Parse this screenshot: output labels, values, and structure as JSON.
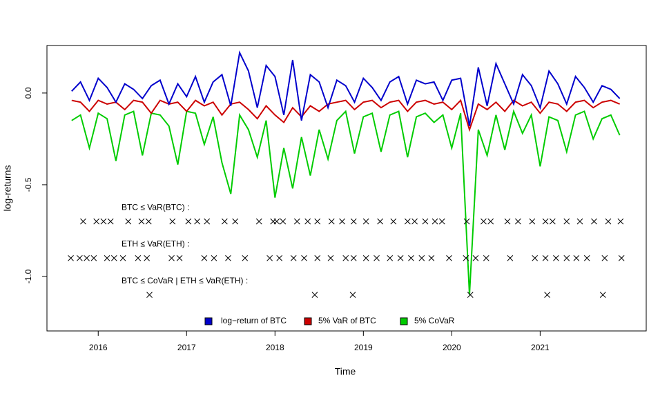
{
  "chart_data": {
    "type": "line",
    "x_label": "Time",
    "y_label": "log-returns",
    "x": [
      2015.7,
      2015.8,
      2015.9,
      2016.0,
      2016.1,
      2016.2,
      2016.3,
      2016.4,
      2016.5,
      2016.6,
      2016.7,
      2016.8,
      2016.9,
      2017.0,
      2017.1,
      2017.2,
      2017.3,
      2017.4,
      2017.5,
      2017.6,
      2017.7,
      2017.8,
      2017.9,
      2018.0,
      2018.1,
      2018.2,
      2018.3,
      2018.4,
      2018.5,
      2018.6,
      2018.7,
      2018.8,
      2018.9,
      2019.0,
      2019.1,
      2019.2,
      2019.3,
      2019.4,
      2019.5,
      2019.6,
      2019.7,
      2019.8,
      2019.9,
      2020.0,
      2020.1,
      2020.2,
      2020.3,
      2020.4,
      2020.5,
      2020.6,
      2020.7,
      2020.8,
      2020.9,
      2021.0,
      2021.1,
      2021.2,
      2021.3,
      2021.4,
      2021.5,
      2021.6,
      2021.7,
      2021.8,
      2021.9
    ],
    "series": [
      {
        "name": "log−return of BTC",
        "color": "#0000cc",
        "values": [
          0.01,
          0.06,
          -0.04,
          0.08,
          0.03,
          -0.05,
          0.05,
          0.02,
          -0.03,
          0.04,
          0.07,
          -0.06,
          0.05,
          -0.02,
          0.09,
          -0.05,
          0.06,
          0.1,
          -0.07,
          0.22,
          0.12,
          -0.08,
          0.15,
          0.09,
          -0.12,
          0.18,
          -0.15,
          0.1,
          0.06,
          -0.08,
          0.07,
          0.04,
          -0.05,
          0.08,
          0.03,
          -0.04,
          0.06,
          0.09,
          -0.06,
          0.07,
          0.05,
          0.06,
          -0.04,
          0.07,
          0.08,
          -0.18,
          0.14,
          -0.07,
          0.16,
          0.05,
          -0.06,
          0.1,
          0.04,
          -0.08,
          0.12,
          0.05,
          -0.06,
          0.09,
          0.03,
          -0.05,
          0.04,
          0.02,
          -0.03
        ]
      },
      {
        "name": "5% VaR of BTC",
        "color": "#cc0000",
        "values": [
          -0.04,
          -0.05,
          -0.1,
          -0.04,
          -0.06,
          -0.05,
          -0.09,
          -0.04,
          -0.05,
          -0.11,
          -0.04,
          -0.06,
          -0.05,
          -0.1,
          -0.04,
          -0.07,
          -0.05,
          -0.12,
          -0.06,
          -0.05,
          -0.09,
          -0.14,
          -0.07,
          -0.12,
          -0.16,
          -0.08,
          -0.13,
          -0.07,
          -0.1,
          -0.06,
          -0.05,
          -0.04,
          -0.09,
          -0.05,
          -0.04,
          -0.08,
          -0.05,
          -0.04,
          -0.1,
          -0.05,
          -0.04,
          -0.06,
          -0.05,
          -0.09,
          -0.04,
          -0.2,
          -0.06,
          -0.09,
          -0.05,
          -0.1,
          -0.04,
          -0.07,
          -0.05,
          -0.11,
          -0.05,
          -0.06,
          -0.1,
          -0.05,
          -0.04,
          -0.08,
          -0.05,
          -0.04,
          -0.06
        ]
      },
      {
        "name": "5% CoVaR",
        "color": "#00cc00",
        "values": [
          -0.15,
          -0.12,
          -0.3,
          -0.11,
          -0.14,
          -0.37,
          -0.12,
          -0.1,
          -0.34,
          -0.11,
          -0.12,
          -0.18,
          -0.39,
          -0.1,
          -0.11,
          -0.28,
          -0.13,
          -0.38,
          -0.55,
          -0.12,
          -0.2,
          -0.35,
          -0.15,
          -0.57,
          -0.3,
          -0.52,
          -0.24,
          -0.45,
          -0.2,
          -0.36,
          -0.15,
          -0.1,
          -0.33,
          -0.13,
          -0.11,
          -0.32,
          -0.12,
          -0.1,
          -0.35,
          -0.13,
          -0.11,
          -0.16,
          -0.12,
          -0.3,
          -0.11,
          -1.1,
          -0.2,
          -0.34,
          -0.12,
          -0.31,
          -0.1,
          -0.22,
          -0.12,
          -0.4,
          -0.13,
          -0.15,
          -0.32,
          -0.12,
          -0.1,
          -0.25,
          -0.14,
          -0.12,
          -0.23
        ]
      }
    ],
    "exceedances": [
      {
        "label": "BTC ≤ VaR(BTC) :",
        "y": -0.7,
        "x": [
          2015.83,
          2015.98,
          2016.06,
          2016.14,
          2016.34,
          2016.49,
          2016.57,
          2016.84,
          2017.02,
          2017.12,
          2017.23,
          2017.43,
          2017.55,
          2017.82,
          2017.98,
          2018.02,
          2018.09,
          2018.25,
          2018.37,
          2018.48,
          2018.64,
          2018.76,
          2018.89,
          2019.03,
          2019.19,
          2019.34,
          2019.5,
          2019.58,
          2019.7,
          2019.81,
          2019.89,
          2020.17,
          2020.36,
          2020.44,
          2020.63,
          2020.75,
          2020.91,
          2021.06,
          2021.14,
          2021.3,
          2021.45,
          2021.61,
          2021.77,
          2021.91
        ]
      },
      {
        "label": "ETH ≤ VaR(ETH) :",
        "y": -0.9,
        "x": [
          2015.69,
          2015.79,
          2015.87,
          2015.95,
          2016.1,
          2016.18,
          2016.28,
          2016.45,
          2016.55,
          2016.83,
          2016.92,
          2017.2,
          2017.31,
          2017.47,
          2017.66,
          2017.94,
          2018.05,
          2018.21,
          2018.33,
          2018.48,
          2018.63,
          2018.8,
          2018.89,
          2019.03,
          2019.15,
          2019.3,
          2019.42,
          2019.54,
          2019.66,
          2019.77,
          2019.97,
          2020.16,
          2020.27,
          2020.39,
          2020.66,
          2020.94,
          2021.06,
          2021.18,
          2021.3,
          2021.41,
          2021.53,
          2021.73,
          2021.92
        ]
      },
      {
        "label": "BTC ≤ CoVaR | ETH ≤ VaR(ETH) :",
        "y": -1.1,
        "x": [
          2016.58,
          2018.45,
          2018.88,
          2020.21,
          2021.08,
          2021.71
        ]
      }
    ],
    "xlim": [
      2015.42,
      2022.2
    ],
    "xticks": [
      2016,
      2017,
      2018,
      2019,
      2020,
      2021
    ],
    "ylim": [
      -1.297,
      0.259
    ],
    "yticks": [
      {
        "value": 0,
        "label": "0.0"
      },
      {
        "value": -0.5,
        "label": "-0.5"
      },
      {
        "value": -1,
        "label": "-1.0"
      }
    ],
    "legend": "bottom"
  }
}
